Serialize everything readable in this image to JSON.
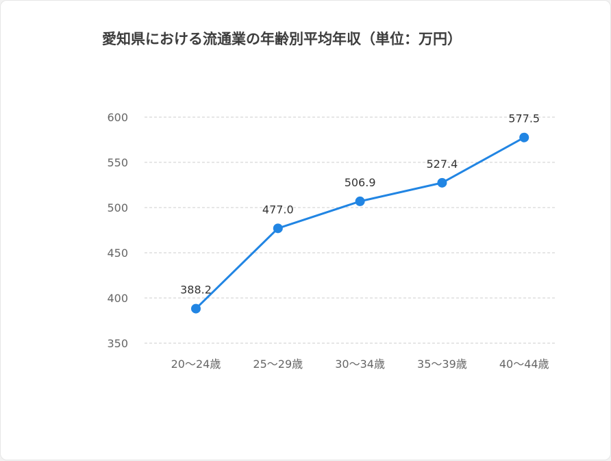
{
  "chart_data": {
    "type": "line",
    "title": "愛知県における流通業の年齢別平均年収（単位：万円）",
    "xlabel": "",
    "ylabel": "",
    "categories": [
      "20〜24歳",
      "25〜29歳",
      "30〜34歳",
      "35〜39歳",
      "40〜44歳"
    ],
    "series": [
      {
        "values": [
          388.2,
          477.0,
          506.9,
          527.4,
          577.5
        ],
        "labels": [
          "388.2",
          "477.0",
          "506.9",
          "527.4",
          "577.5"
        ],
        "color": "#2185e3"
      }
    ],
    "ylim": [
      350,
      600
    ],
    "yticks": [
      "350",
      "400",
      "450",
      "500",
      "550",
      "600"
    ],
    "grid": true,
    "legend": "none"
  }
}
